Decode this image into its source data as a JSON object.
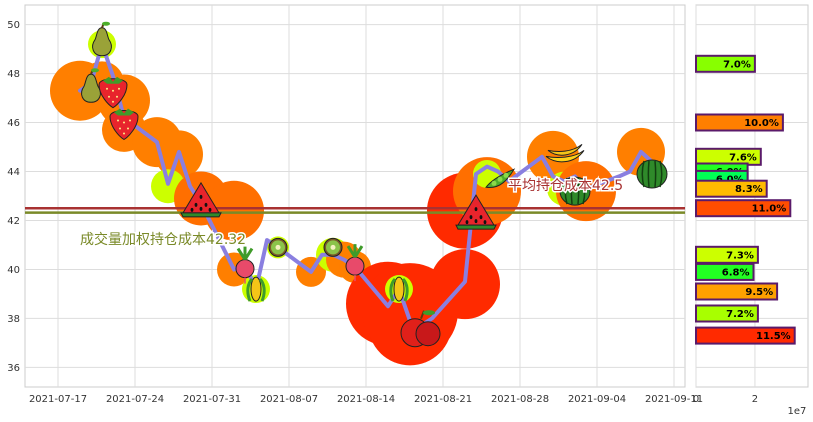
{
  "chart_data": [
    {
      "type": "line",
      "x_ticks": [
        "2021-07-17",
        "2021-07-24",
        "2021-07-31",
        "2021-08-07",
        "2021-08-14",
        "2021-08-21",
        "2021-08-28",
        "2021-09-04",
        "2021-09-11"
      ],
      "y_ticks": [
        36,
        38,
        40,
        42,
        44,
        46,
        48,
        50
      ],
      "xlim": [
        "2021-07-14",
        "2021-09-12"
      ],
      "ylim": [
        35.2,
        50.8
      ],
      "grid": true,
      "line_color": "#8a7fe0",
      "x": [
        "2021-07-19",
        "2021-07-20",
        "2021-07-21",
        "2021-07-22",
        "2021-07-23",
        "2021-07-26",
        "2021-07-27",
        "2021-07-28",
        "2021-07-29",
        "2021-07-30",
        "2021-08-02",
        "2021-08-03",
        "2021-08-04",
        "2021-08-05",
        "2021-08-06",
        "2021-08-09",
        "2021-08-10",
        "2021-08-11",
        "2021-08-12",
        "2021-08-13",
        "2021-08-16",
        "2021-08-17",
        "2021-08-18",
        "2021-08-19",
        "2021-08-20",
        "2021-08-23",
        "2021-08-24",
        "2021-08-25",
        "2021-08-26",
        "2021-08-27",
        "2021-08-30",
        "2021-08-31",
        "2021-09-01",
        "2021-09-02",
        "2021-09-03",
        "2021-09-06",
        "2021-09-07",
        "2021-09-08",
        "2021-09-09",
        "2021-09-10"
      ],
      "y": [
        47.3,
        47.6,
        49.2,
        47.9,
        46.2,
        45.2,
        43.5,
        44.8,
        43.4,
        42.7,
        40.0,
        40.2,
        39.2,
        41.2,
        40.9,
        39.9,
        40.6,
        40.6,
        40.4,
        40.1,
        38.5,
        39.2,
        37.9,
        37.7,
        38.0,
        39.5,
        43.9,
        44.2,
        44.0,
        43.6,
        44.6,
        43.8,
        43.6,
        43.8,
        43.3,
        43.8,
        44.0,
        44.8,
        44.4,
        43.7
      ],
      "hlines": [
        {
          "y": 42.5,
          "color": "#a83232",
          "label": "平均持仓成本42.5"
        },
        {
          "y": 42.32,
          "color": "#7a8a28",
          "label": "成交量加权持仓成本42.32"
        }
      ],
      "bubbles": [
        {
          "x": "2021-07-19",
          "y": 47.3,
          "r": 30,
          "color": "#ff7f00"
        },
        {
          "x": "2021-07-21",
          "y": 49.2,
          "r": 14,
          "color": "#ccff00"
        },
        {
          "x": "2021-07-21",
          "y": 47.6,
          "r": 22,
          "color": "#ff7f00"
        },
        {
          "x": "2021-07-23",
          "y": 46.9,
          "r": 26,
          "color": "#ff7f00"
        },
        {
          "x": "2021-07-23",
          "y": 45.7,
          "r": 22,
          "color": "#ff7f00"
        },
        {
          "x": "2021-07-26",
          "y": 45.2,
          "r": 25,
          "color": "#ff7f00"
        },
        {
          "x": "2021-07-28",
          "y": 44.7,
          "r": 24,
          "color": "#ff7f00"
        },
        {
          "x": "2021-07-27",
          "y": 43.4,
          "r": 17,
          "color": "#ccff00"
        },
        {
          "x": "2021-07-30",
          "y": 42.9,
          "r": 27,
          "color": "#ff6f00"
        },
        {
          "x": "2021-08-02",
          "y": 42.4,
          "r": 30,
          "color": "#ff6f00"
        },
        {
          "x": "2021-08-02",
          "y": 40.0,
          "r": 17,
          "color": "#ff7f00"
        },
        {
          "x": "2021-08-04",
          "y": 39.2,
          "r": 14,
          "color": "#ccff00"
        },
        {
          "x": "2021-08-06",
          "y": 40.9,
          "r": 11,
          "color": "#ccff00"
        },
        {
          "x": "2021-08-09",
          "y": 39.9,
          "r": 15,
          "color": "#ff7f00"
        },
        {
          "x": "2021-08-11",
          "y": 40.6,
          "r": 17,
          "color": "#ccff00"
        },
        {
          "x": "2021-08-12",
          "y": 40.4,
          "r": 18,
          "color": "#ff7f00"
        },
        {
          "x": "2021-08-13",
          "y": 40.1,
          "r": 16,
          "color": "#ff7f00"
        },
        {
          "x": "2021-08-16",
          "y": 38.6,
          "r": 42,
          "color": "#ff2a00"
        },
        {
          "x": "2021-08-18",
          "y": 38.3,
          "r": 48,
          "color": "#ff2a00"
        },
        {
          "x": "2021-08-18",
          "y": 37.8,
          "r": 42,
          "color": "#ff2a00"
        },
        {
          "x": "2021-08-17",
          "y": 39.2,
          "r": 14,
          "color": "#ccff00"
        },
        {
          "x": "2021-08-23",
          "y": 39.4,
          "r": 35,
          "color": "#ff2a00"
        },
        {
          "x": "2021-08-23",
          "y": 42.4,
          "r": 38,
          "color": "#ff2a00"
        },
        {
          "x": "2021-08-25",
          "y": 43.2,
          "r": 34,
          "color": "#ff6f00"
        },
        {
          "x": "2021-08-25",
          "y": 43.9,
          "r": 14,
          "color": "#ccff00"
        },
        {
          "x": "2021-08-31",
          "y": 44.6,
          "r": 26,
          "color": "#ff7f00"
        },
        {
          "x": "2021-09-01",
          "y": 43.3,
          "r": 17,
          "color": "#ccff00"
        },
        {
          "x": "2021-09-03",
          "y": 43.2,
          "r": 30,
          "color": "#ff6f00"
        },
        {
          "x": "2021-09-08",
          "y": 44.8,
          "r": 24,
          "color": "#ff7f00"
        }
      ],
      "markers": [
        {
          "icon": "pear-icon",
          "x": "2021-07-21",
          "y": 49.3
        },
        {
          "icon": "pear-icon",
          "x": "2021-07-20",
          "y": 47.4
        },
        {
          "icon": "strawberry-icon",
          "x": "2021-07-22",
          "y": 47.3
        },
        {
          "icon": "strawberry-icon",
          "x": "2021-07-23",
          "y": 46.0
        },
        {
          "icon": "watermelon-slice-icon",
          "x": "2021-07-30",
          "y": 42.8
        },
        {
          "icon": "radish-icon",
          "x": "2021-08-03",
          "y": 40.2
        },
        {
          "icon": "corn-icon",
          "x": "2021-08-04",
          "y": 39.2
        },
        {
          "icon": "kiwi-icon",
          "x": "2021-08-06",
          "y": 40.9
        },
        {
          "icon": "kiwi-icon",
          "x": "2021-08-11",
          "y": 40.9
        },
        {
          "icon": "radish-icon",
          "x": "2021-08-13",
          "y": 40.3
        },
        {
          "icon": "corn-icon",
          "x": "2021-08-17",
          "y": 39.2
        },
        {
          "icon": "apple-icon",
          "x": "2021-08-19",
          "y": 37.5
        },
        {
          "icon": "watermelon-slice-icon",
          "x": "2021-08-24",
          "y": 42.3
        },
        {
          "icon": "pea-pod-icon",
          "x": "2021-08-26",
          "y": 43.6
        },
        {
          "icon": "banana-icon",
          "x": "2021-09-01",
          "y": 44.7
        },
        {
          "icon": "watermelon-icon",
          "x": "2021-09-02",
          "y": 43.2
        },
        {
          "icon": "watermelon-icon",
          "x": "2021-09-09",
          "y": 43.9
        }
      ]
    },
    {
      "type": "bar",
      "orientation": "horizontal",
      "x_ticks": [
        "0",
        "2"
      ],
      "x_multiplier": "1e7",
      "xlim": [
        0,
        3.8
      ],
      "bars": [
        {
          "y": 48.4,
          "value": 2.0,
          "label": "7.0%",
          "color": "#88ff00"
        },
        {
          "y": 46.0,
          "value": 2.95,
          "label": "10.0%",
          "color": "#ff7f00"
        },
        {
          "y": 44.6,
          "value": 2.2,
          "label": "7.6%",
          "color": "#ccff00"
        },
        {
          "y": 44.0,
          "value": 1.75,
          "label": "6.0%",
          "color": "#22ff22"
        },
        {
          "y": 43.7,
          "value": 1.75,
          "label": "6.0%",
          "color": "#00ff55"
        },
        {
          "y": 43.3,
          "value": 2.4,
          "label": "8.3%",
          "color": "#ffbb00"
        },
        {
          "y": 42.5,
          "value": 3.2,
          "label": "11.0%",
          "color": "#ff4d00"
        },
        {
          "y": 40.6,
          "value": 2.1,
          "label": "7.3%",
          "color": "#ccff00"
        },
        {
          "y": 39.9,
          "value": 1.95,
          "label": "6.8%",
          "color": "#22ff22"
        },
        {
          "y": 39.1,
          "value": 2.75,
          "label": "9.5%",
          "color": "#ffa000"
        },
        {
          "y": 38.2,
          "value": 2.1,
          "label": "7.2%",
          "color": "#a8ff00"
        },
        {
          "y": 37.3,
          "value": 3.35,
          "label": "11.5%",
          "color": "#ff2a00"
        }
      ]
    }
  ]
}
